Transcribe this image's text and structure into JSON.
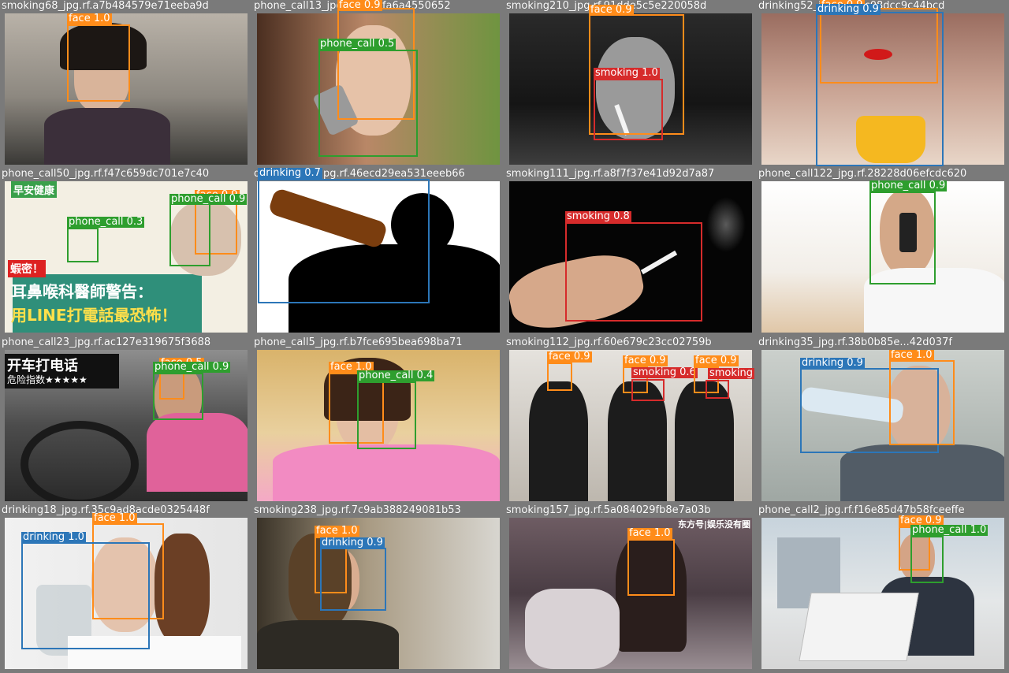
{
  "colors": {
    "face": "#ff8c1a",
    "phone_call": "#2e9e2e",
    "smoking": "#d62b2b",
    "drinking": "#2c76b8"
  },
  "tiles": [
    {
      "filename": "smoking68_jpg.rf.a7b484579e71eeba9d",
      "labels": [
        "face 1.0"
      ]
    },
    {
      "filename": "phone_call13_jpg.rf.d999fa6a4550652",
      "labels": [
        "face 0.9",
        "phone_call 0.5"
      ]
    },
    {
      "filename": "smoking210_jpg.rf.91dde5c5e220058d",
      "labels": [
        "face 0.9",
        "smoking 1.0"
      ]
    },
    {
      "filename": "drinking52_jpg.rf.d7fc08dcc9c44bcd",
      "labels": [
        "face 0.9",
        "drinking 0.9"
      ]
    },
    {
      "filename": "phone_call50_jpg.rf.f47c659dc701e7c40",
      "labels": [
        "face 0.9",
        "phone_call 0.9",
        "phone_call 0.3"
      ],
      "overlay": {
        "badge": "早安健康",
        "alert": "蝦密！",
        "line1": "耳鼻喉科醫師警告：",
        "line2": "用LINE打電話最恐怖！"
      }
    },
    {
      "filename": "drinking123_jpg.rf.46ecd29ea531eeeb66",
      "labels": [
        "drinking 0.7"
      ]
    },
    {
      "filename": "smoking111_jpg.rf.a8f7f37e41d92d7a87",
      "labels": [
        "smoking 0.8"
      ]
    },
    {
      "filename": "phone_call122_jpg.rf.28228d06efcdc620",
      "labels": [
        "phone_call 0.9"
      ]
    },
    {
      "filename": "phone_call23_jpg.rf.ac127e319675f3688",
      "labels": [
        "face 0.5",
        "phone_call 0.9"
      ],
      "overlay": {
        "title": "开车打电话",
        "sub": "危险指数★★★★★"
      }
    },
    {
      "filename": "phone_call5_jpg.rf.b7fce695bea698ba71",
      "labels": [
        "face 1.0",
        "phone_call 0.4"
      ]
    },
    {
      "filename": "smoking112_jpg.rf.60e679c23cc02759b",
      "labels": [
        "face 0.9",
        "face 0.9",
        "smoking 0.6",
        "face 0.9",
        "smoking"
      ]
    },
    {
      "filename": "drinking35_jpg.rf.38b0b85e...42d037f",
      "labels": [
        "drinking 0.9",
        "face 1.0"
      ]
    },
    {
      "filename": "drinking18_jpg.rf.35c9ad8acde0325448f",
      "labels": [
        "face 1.0",
        "drinking 1.0"
      ]
    },
    {
      "filename": "smoking238_jpg.rf.7c9ab388249081b53",
      "labels": [
        "face 1.0",
        "drinking 0.9"
      ]
    },
    {
      "filename": "smoking157_jpg.rf.5a084029fb8e7a03b",
      "labels": [
        "face 1.0"
      ],
      "overlay": {
        "watermark": "东方号|娱乐没有圈"
      }
    },
    {
      "filename": "phone_call2_jpg.rf.f16e85d47b58fceeffe",
      "labels": [
        "face 0.9",
        "phone_call 1.0"
      ]
    }
  ]
}
